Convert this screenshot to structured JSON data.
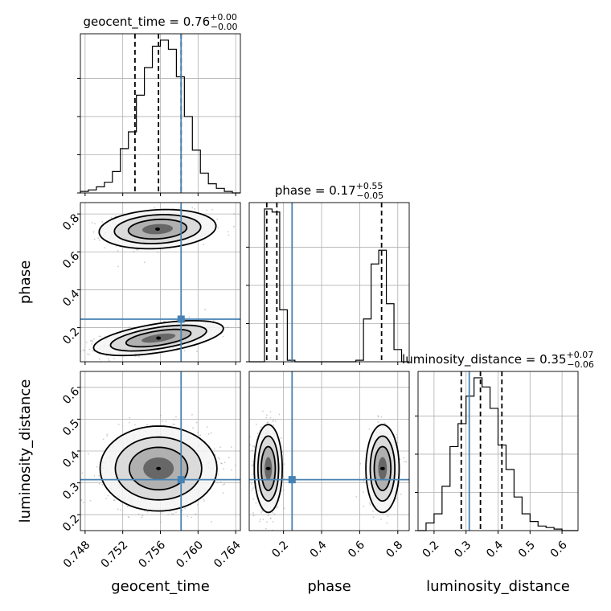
{
  "chart_data": {
    "type": "corner",
    "parameters": [
      "geocent_time",
      "phase",
      "luminosity_distance"
    ],
    "axis_labels": [
      "geocent_time",
      "phase",
      "luminosity_distance"
    ],
    "titles": [
      {
        "text": "geocent_time = 0.76",
        "sup": "+0.00",
        "sub": "−0.00"
      },
      {
        "text": "phase = 0.17",
        "sup": "+0.55",
        "sub": "−0.05"
      },
      {
        "text": "luminosity_distance = 0.35",
        "sup": "+0.07",
        "sub": "−0.06"
      }
    ],
    "ranges": [
      [
        0.7475,
        0.7645
      ],
      [
        0.02,
        0.86
      ],
      [
        0.15,
        0.65
      ]
    ],
    "ticks": [
      {
        "values": [
          0.748,
          0.752,
          0.756,
          0.76,
          0.764
        ],
        "labels": [
          "0.748",
          "0.752",
          "0.756",
          "0.760",
          "0.764"
        ]
      },
      {
        "values": [
          0.2,
          0.4,
          0.6,
          0.8
        ],
        "labels": [
          "0.2",
          "0.4",
          "0.6",
          "0.8"
        ]
      },
      {
        "values": [
          0.2,
          0.3,
          0.4,
          0.5,
          0.6
        ],
        "labels": [
          "0.2",
          "0.3",
          "0.4",
          "0.5",
          "0.6"
        ]
      }
    ],
    "truth": [
      0.7582,
      0.245,
      0.31
    ],
    "truth_color": "#4682b4",
    "quantiles": [
      [
        0.7533,
        0.7558,
        0.7582
      ],
      [
        0.112,
        0.165,
        0.715
      ],
      [
        0.285,
        0.345,
        0.412
      ]
    ],
    "histograms": [
      {
        "edges_range": [
          0.7475,
          0.7645
        ],
        "counts": [
          1,
          2,
          4,
          7,
          14,
          29,
          40,
          64,
          82,
          96,
          100,
          94,
          76,
          50,
          28,
          13,
          6,
          3,
          1,
          0
        ]
      },
      {
        "edges_range": [
          0.02,
          0.86
        ],
        "counts": [
          0,
          0,
          100,
          98,
          34,
          1,
          0,
          0,
          0,
          0,
          0,
          0,
          0,
          0,
          1,
          28,
          64,
          73,
          38,
          8,
          0
        ]
      },
      {
        "edges_range": [
          0.15,
          0.65
        ],
        "counts": [
          0,
          5,
          11,
          29,
          55,
          70,
          88,
          100,
          94,
          80,
          56,
          40,
          22,
          11,
          6,
          3,
          2,
          1,
          0,
          0
        ]
      }
    ],
    "blobs": [
      {
        "pair": [
          0,
          1
        ],
        "clusters": [
          {
            "mu": [
              0.7557,
              0.72
            ],
            "sd": [
              0.0027,
              0.045
            ],
            "w": 0.45,
            "corr": 0.15
          },
          {
            "mu": [
              0.7558,
              0.145
            ],
            "sd": [
              0.003,
              0.04
            ],
            "w": 0.55,
            "corr": 0.55
          }
        ]
      },
      {
        "pair": [
          0,
          2
        ],
        "clusters": [
          {
            "mu": [
              0.7558,
              0.345
            ],
            "sd": [
              0.0027,
              0.058
            ],
            "w": 1.0,
            "corr": 0.0
          }
        ]
      },
      {
        "pair": [
          1,
          2
        ],
        "clusters": [
          {
            "mu": [
              0.12,
              0.345
            ],
            "sd": [
              0.032,
              0.06
            ],
            "w": 0.6,
            "corr": 0.0
          },
          {
            "mu": [
              0.72,
              0.345
            ],
            "sd": [
              0.038,
              0.06
            ],
            "w": 0.4,
            "corr": 0.0
          }
        ]
      }
    ],
    "grid": true
  }
}
